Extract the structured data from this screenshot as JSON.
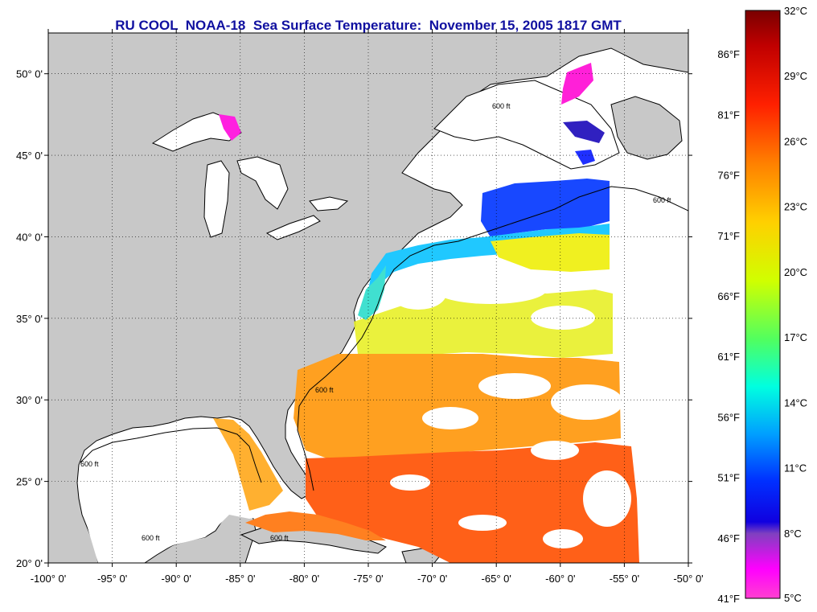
{
  "title": "RU COOL  NOAA-18  Sea Surface Temperature:  November 15, 2005 1817 GMT",
  "map": {
    "lon_range": [
      -100,
      -50
    ],
    "lat_range": [
      20,
      52.5
    ],
    "lon_ticks": [
      {
        "lon": -100,
        "label": "-100° 0'"
      },
      {
        "lon": -95,
        "label": "-95° 0'"
      },
      {
        "lon": -90,
        "label": "-90° 0'"
      },
      {
        "lon": -85,
        "label": "-85° 0'"
      },
      {
        "lon": -80,
        "label": "-80° 0'"
      },
      {
        "lon": -75,
        "label": "-75° 0'"
      },
      {
        "lon": -70,
        "label": "-70° 0'"
      },
      {
        "lon": -65,
        "label": "-65° 0'"
      },
      {
        "lon": -60,
        "label": "-60° 0'"
      },
      {
        "lon": -55,
        "label": "-55° 0'"
      },
      {
        "lon": -50,
        "label": "-50° 0'"
      }
    ],
    "lat_ticks": [
      {
        "lat": 20,
        "label": "20° 0'"
      },
      {
        "lat": 25,
        "label": "25° 0'"
      },
      {
        "lat": 30,
        "label": "30° 0'"
      },
      {
        "lat": 35,
        "label": "35° 0'"
      },
      {
        "lat": 40,
        "label": "40° 0'"
      },
      {
        "lat": 45,
        "label": "45° 0'"
      },
      {
        "lat": 50,
        "label": "50° 0'"
      }
    ],
    "contour_label": "600 ft",
    "colors": {
      "land": "#c8c8c8",
      "no_data": "#ffffff",
      "coast": "#000000",
      "grid": "#000000"
    }
  },
  "colorbar": {
    "celsius_range": [
      5,
      32
    ],
    "celsius_labels": [
      "32°C",
      "29°C",
      "26°C",
      "23°C",
      "20°C",
      "17°C",
      "14°C",
      "11°C",
      "8°C",
      "5°C"
    ],
    "fahrenheit_labels": [
      "86°F",
      "81°F",
      "76°F",
      "71°F",
      "66°F",
      "61°F",
      "56°F",
      "51°F",
      "46°F",
      "41°F"
    ],
    "colors_top_to_bottom": [
      "#8b0000",
      "#e00000",
      "#ff4000",
      "#ff8c00",
      "#ffd000",
      "#c8ff00",
      "#40ff80",
      "#00e0ff",
      "#0070ff",
      "#0000ff",
      "#8000c0",
      "#ff00ff",
      "#ff40e0"
    ]
  }
}
